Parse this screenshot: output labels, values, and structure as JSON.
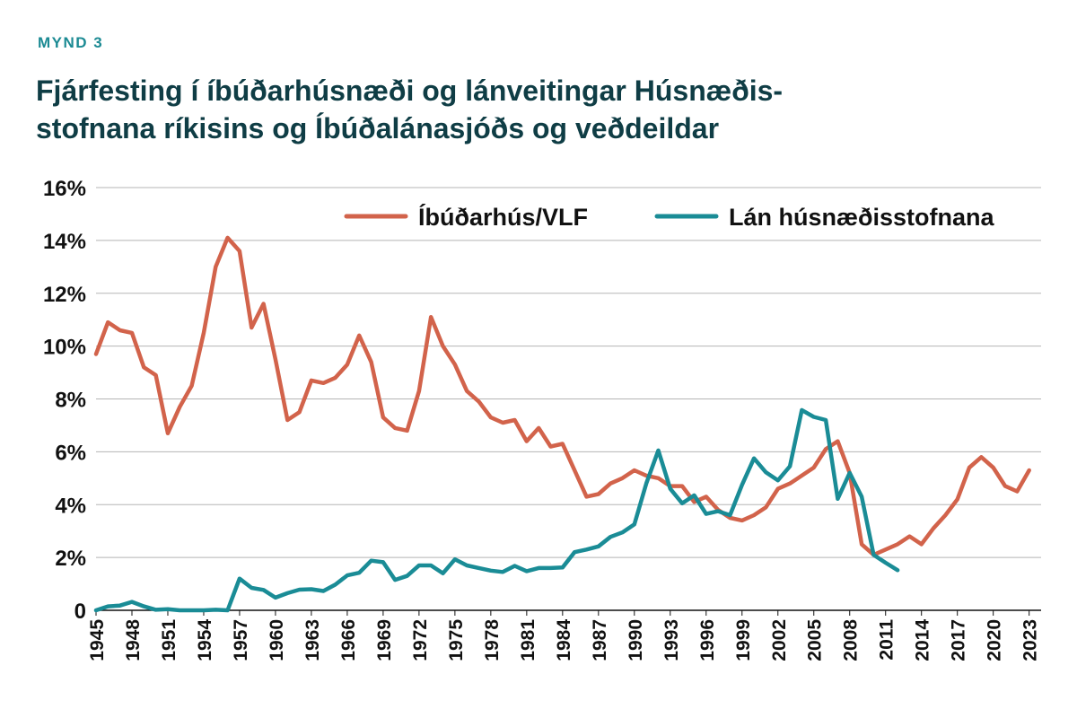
{
  "figure_label": "MYND 3",
  "title_line1": "Fjárfesting í íbúðarhúsnæði og lánveitingar Húsnæðis-",
  "title_line2": "stofnana ríkisins og Íbúðalánasjóðs og veðdeildar",
  "colors": {
    "housing": "#d2634b",
    "loans": "#1a8c96",
    "grid": "#b5b5b5",
    "title": "#0f3d45",
    "label": "#1b8a93"
  },
  "chart_data": {
    "type": "line",
    "title": "Fjárfesting í íbúðarhúsnæði og lánveitingar Húsnæðisstofnana ríkisins og Íbúðalánasjóðs og veðdeildar",
    "xlabel": "",
    "ylabel": "",
    "ylim": [
      0,
      16
    ],
    "y_ticks": [
      0,
      2,
      4,
      6,
      8,
      10,
      12,
      14,
      16
    ],
    "y_tick_labels": [
      "0",
      "2%",
      "4%",
      "6%",
      "8%",
      "10%",
      "12%",
      "14%",
      "16%"
    ],
    "x_range": [
      1945,
      2023
    ],
    "x_tick_labels": [
      "1945",
      "1948",
      "1951",
      "1954",
      "1957",
      "1960",
      "1963",
      "1966",
      "1969",
      "1972",
      "1975",
      "1978",
      "1981",
      "1984",
      "1987",
      "1990",
      "1993",
      "1996",
      "1999",
      "2002",
      "2005",
      "2008",
      "2011",
      "2014",
      "2017",
      "2020",
      "2023"
    ],
    "grid": true,
    "legend_position": "top-right",
    "series": [
      {
        "name": "Íbúðarhús/VLF",
        "color": "#d2634b",
        "values": [
          9.7,
          10.9,
          10.6,
          10.5,
          9.2,
          8.9,
          6.7,
          7.7,
          8.5,
          10.5,
          13.0,
          14.1,
          13.6,
          10.7,
          11.6,
          9.5,
          7.2,
          7.5,
          8.7,
          8.6,
          8.8,
          9.3,
          10.4,
          9.4,
          7.3,
          6.9,
          6.8,
          8.3,
          11.1,
          10.0,
          9.3,
          8.3,
          7.9,
          7.3,
          7.1,
          7.2,
          6.4,
          6.9,
          6.2,
          6.3,
          5.3,
          4.3,
          4.4,
          4.8,
          5.0,
          5.3,
          5.1,
          5.0,
          4.7,
          4.7,
          4.1,
          4.3,
          3.8,
          3.5,
          3.4,
          3.6,
          3.9,
          4.6,
          4.8,
          5.1,
          5.4,
          6.1,
          6.4,
          5.2,
          2.5,
          2.1,
          2.3,
          2.5,
          2.8,
          2.5,
          3.1,
          3.6,
          4.2,
          5.4,
          5.8,
          5.4,
          4.7,
          4.5,
          5.3
        ]
      },
      {
        "name": "Lán húsnæðisstofnana",
        "color": "#1a8c96",
        "values": [
          0.0,
          0.15,
          0.18,
          0.32,
          0.15,
          0.02,
          0.04,
          0.0,
          0.0,
          0.0,
          0.02,
          0.0,
          1.2,
          0.85,
          0.77,
          0.48,
          0.65,
          0.78,
          0.8,
          0.73,
          0.97,
          1.32,
          1.42,
          1.88,
          1.82,
          1.15,
          1.3,
          1.7,
          1.7,
          1.4,
          1.93,
          1.7,
          1.6,
          1.5,
          1.45,
          1.68,
          1.48,
          1.6,
          1.6,
          1.62,
          2.2,
          2.3,
          2.42,
          2.78,
          2.95,
          3.25,
          4.8,
          6.05,
          4.6,
          4.05,
          4.35,
          3.65,
          3.75,
          3.6,
          4.75,
          5.75,
          5.22,
          4.92,
          5.45,
          7.58,
          7.32,
          7.2,
          4.22,
          5.2,
          4.3,
          2.1,
          1.8,
          1.52
        ]
      }
    ]
  }
}
